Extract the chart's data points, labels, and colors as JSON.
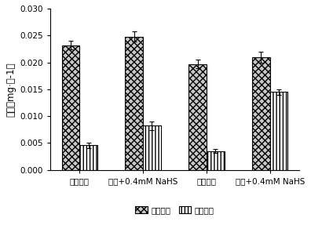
{
  "groups": [
    "常温对照",
    "常温+0.4mM NaHS",
    "低温对照",
    "低温+0.4mM NaHS"
  ],
  "above_ground": [
    0.0232,
    0.0248,
    0.0197,
    0.021
  ],
  "below_ground": [
    0.0046,
    0.0082,
    0.0035,
    0.0145
  ],
  "above_ground_err": [
    0.0008,
    0.001,
    0.0008,
    0.001
  ],
  "below_ground_err": [
    0.0005,
    0.0008,
    0.0004,
    0.0005
  ],
  "ylabel": "干重（mg·株-1）",
  "ylim": [
    0.0,
    0.03
  ],
  "yticks": [
    0.0,
    0.005,
    0.01,
    0.015,
    0.02,
    0.025,
    0.03
  ],
  "ytick_labels": [
    "0.000",
    "0.005",
    "0.010",
    "0.015",
    "0.020",
    "0.025",
    "0.030"
  ],
  "legend_above": "地上部分",
  "legend_below": "地下部分",
  "bar_width": 0.28,
  "background_color": "#ffffff",
  "above_facecolor": "#c8c8c8",
  "below_facecolor": "#ffffff",
  "edgecolor": "#000000",
  "tick_fontsize": 7.5,
  "label_fontsize": 8.5,
  "legend_fontsize": 7.5
}
